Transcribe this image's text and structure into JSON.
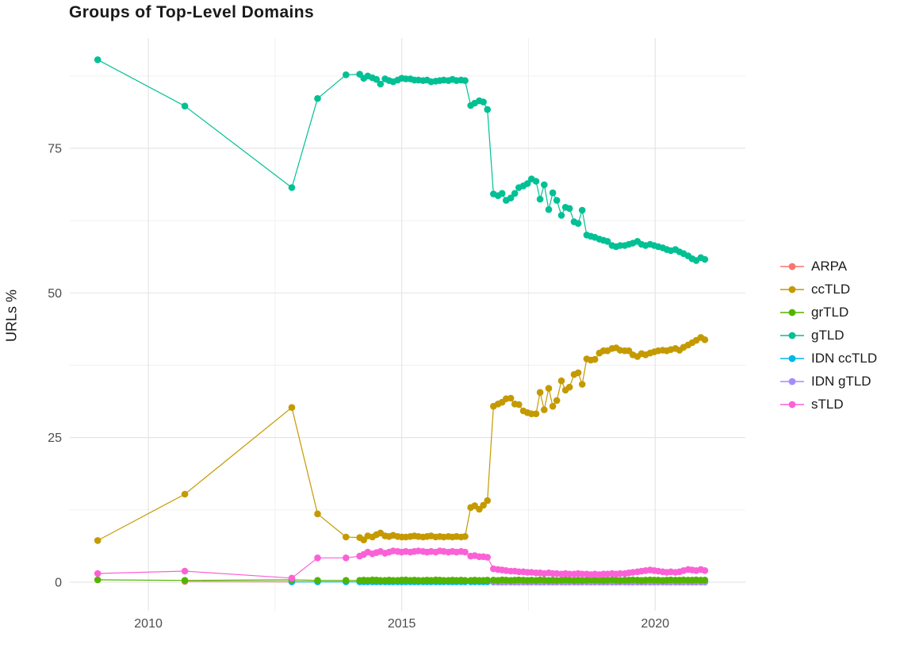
{
  "chart_data": {
    "type": "line",
    "title": "Groups of Top-Level Domains",
    "xlabel": "",
    "ylabel": "URLs %",
    "grid": true,
    "legend_position": "right",
    "x_ticks": [
      2010,
      2015,
      2020
    ],
    "x_minor": [
      2012.5,
      2017.5
    ],
    "y_ticks": [
      0,
      25,
      50,
      75
    ],
    "y_minor": [
      12.5,
      37.5,
      62.5,
      87.5
    ],
    "xlim": [
      2008.45,
      2021.78
    ],
    "ylim": [
      -4.95,
      94.05
    ],
    "legend_order": [
      "ARPA",
      "ccTLD",
      "grTLD",
      "gTLD",
      "IDN ccTLD",
      "IDN gTLD",
      "sTLD"
    ],
    "draw_order": [
      "ARPA",
      "IDN ccTLD",
      "IDN gTLD",
      "grTLD",
      "ccTLD",
      "gTLD",
      "sTLD"
    ],
    "series": [
      {
        "name": "ARPA",
        "color": "#F8766D",
        "x": [
          2010.72,
          2012.83
        ],
        "y": [
          0.12,
          0.06
        ]
      },
      {
        "name": "ccTLD",
        "color": "#C49A00",
        "x": [
          2009,
          2010.72,
          2012.83,
          2013.34,
          2013.9,
          2014.17,
          2014.25,
          2014.33,
          2014.42,
          2014.5,
          2014.58,
          2014.67,
          2014.75,
          2014.83,
          2014.92,
          2015,
          2015.08,
          2015.17,
          2015.25,
          2015.33,
          2015.42,
          2015.5,
          2015.58,
          2015.67,
          2015.75,
          2015.83,
          2015.92,
          2016,
          2016.08,
          2016.17,
          2016.25,
          2016.36,
          2016.44,
          2016.53,
          2016.61,
          2016.69,
          2016.81,
          2016.9,
          2016.98,
          2017.06,
          2017.15,
          2017.23,
          2017.31,
          2017.4,
          2017.48,
          2017.56,
          2017.65,
          2017.73,
          2017.81,
          2017.9,
          2017.98,
          2018.06,
          2018.15,
          2018.23,
          2018.31,
          2018.4,
          2018.48,
          2018.56,
          2018.65,
          2018.73,
          2018.81,
          2018.9,
          2018.98,
          2019.06,
          2019.15,
          2019.23,
          2019.31,
          2019.4,
          2019.48,
          2019.56,
          2019.65,
          2019.73,
          2019.81,
          2019.9,
          2019.98,
          2020.06,
          2020.15,
          2020.23,
          2020.31,
          2020.4,
          2020.48,
          2020.56,
          2020.65,
          2020.73,
          2020.81,
          2020.9,
          2020.98
        ],
        "y": [
          7.2,
          15.2,
          30.2,
          11.8,
          7.8,
          7.7,
          7.3,
          8,
          7.8,
          8.2,
          8.5,
          8,
          7.9,
          8.1,
          7.9,
          7.8,
          7.8,
          7.9,
          8,
          7.9,
          7.8,
          7.9,
          8,
          7.8,
          7.9,
          7.8,
          7.9,
          7.8,
          7.9,
          7.8,
          7.9,
          12.9,
          13.2,
          12.6,
          13.3,
          14.1,
          30.4,
          30.8,
          31.1,
          31.7,
          31.8,
          30.8,
          30.7,
          29.6,
          29.3,
          29.1,
          29.1,
          32.8,
          29.8,
          33.5,
          30.4,
          31.4,
          34.8,
          33.2,
          33.7,
          35.9,
          36.2,
          34.2,
          38.6,
          38.4,
          38.5,
          39.6,
          40,
          40,
          40.4,
          40.5,
          40.1,
          40,
          40,
          39.3,
          39,
          39.5,
          39.3,
          39.6,
          39.8,
          40,
          40.1,
          40,
          40.2,
          40.4,
          40.1,
          40.6,
          41,
          41.4,
          41.8,
          42.3,
          41.9
        ]
      },
      {
        "name": "grTLD",
        "color": "#53B400",
        "x": [
          2009,
          2010.72,
          2012.83,
          2013.34,
          2013.9,
          2014.17,
          2014.25,
          2014.33,
          2014.42,
          2014.5,
          2014.58,
          2014.67,
          2014.75,
          2014.83,
          2014.92,
          2015,
          2015.08,
          2015.17,
          2015.25,
          2015.33,
          2015.42,
          2015.5,
          2015.58,
          2015.67,
          2015.75,
          2015.83,
          2015.92,
          2016,
          2016.08,
          2016.17,
          2016.25,
          2016.36,
          2016.44,
          2016.53,
          2016.61,
          2016.69,
          2016.81,
          2016.9,
          2016.98,
          2017.06,
          2017.15,
          2017.23,
          2017.31,
          2017.4,
          2017.48,
          2017.56,
          2017.65,
          2017.73,
          2017.81,
          2017.9,
          2017.98,
          2018.06,
          2018.15,
          2018.23,
          2018.31,
          2018.4,
          2018.48,
          2018.56,
          2018.65,
          2018.73,
          2018.81,
          2018.9,
          2018.98,
          2019.06,
          2019.15,
          2019.23,
          2019.31,
          2019.4,
          2019.48,
          2019.56,
          2019.65,
          2019.73,
          2019.81,
          2019.9,
          2019.98,
          2020.06,
          2020.15,
          2020.23,
          2020.31,
          2020.4,
          2020.48,
          2020.56,
          2020.65,
          2020.73,
          2020.81,
          2020.9,
          2020.98
        ],
        "y": [
          0.4,
          0.3,
          0.4,
          0.3,
          0.3,
          0.3,
          0.35,
          0.3,
          0.4,
          0.35,
          0.3,
          0.3,
          0.35,
          0.3,
          0.3,
          0.35,
          0.4,
          0.3,
          0.35,
          0.3,
          0.3,
          0.35,
          0.3,
          0.4,
          0.35,
          0.3,
          0.3,
          0.35,
          0.3,
          0.35,
          0.3,
          0.3,
          0.35,
          0.3,
          0.3,
          0.35,
          0.35,
          0.3,
          0.4,
          0.35,
          0.3,
          0.35,
          0.4,
          0.35,
          0.3,
          0.35,
          0.3,
          0.4,
          0.35,
          0.3,
          0.35,
          0.3,
          0.35,
          0.4,
          0.35,
          0.3,
          0.35,
          0.3,
          0.35,
          0.4,
          0.35,
          0.35,
          0.3,
          0.35,
          0.4,
          0.35,
          0.3,
          0.35,
          0.35,
          0.4,
          0.35,
          0.3,
          0.35,
          0.4,
          0.35,
          0.35,
          0.3,
          0.35,
          0.4,
          0.35,
          0.35,
          0.4,
          0.35,
          0.35,
          0.4,
          0.35,
          0.35
        ]
      },
      {
        "name": "gTLD",
        "color": "#00C094",
        "x": [
          2009,
          2010.72,
          2012.83,
          2013.34,
          2013.9,
          2014.17,
          2014.25,
          2014.33,
          2014.42,
          2014.5,
          2014.58,
          2014.67,
          2014.75,
          2014.83,
          2014.92,
          2015,
          2015.08,
          2015.17,
          2015.25,
          2015.33,
          2015.42,
          2015.5,
          2015.58,
          2015.67,
          2015.75,
          2015.83,
          2015.92,
          2016,
          2016.08,
          2016.17,
          2016.25,
          2016.36,
          2016.44,
          2016.53,
          2016.61,
          2016.69,
          2016.81,
          2016.9,
          2016.98,
          2017.06,
          2017.15,
          2017.23,
          2017.31,
          2017.4,
          2017.48,
          2017.56,
          2017.65,
          2017.73,
          2017.81,
          2017.9,
          2017.98,
          2018.06,
          2018.15,
          2018.23,
          2018.31,
          2018.4,
          2018.48,
          2018.56,
          2018.65,
          2018.73,
          2018.81,
          2018.9,
          2018.98,
          2019.06,
          2019.15,
          2019.23,
          2019.31,
          2019.4,
          2019.48,
          2019.56,
          2019.65,
          2019.73,
          2019.81,
          2019.9,
          2019.98,
          2020.06,
          2020.15,
          2020.23,
          2020.31,
          2020.4,
          2020.48,
          2020.56,
          2020.65,
          2020.73,
          2020.81,
          2020.9,
          2020.98
        ],
        "y": [
          90.3,
          82.3,
          68.2,
          83.6,
          87.7,
          87.8,
          87.1,
          87.5,
          87.2,
          86.9,
          86.1,
          87,
          86.7,
          86.5,
          86.8,
          87.1,
          87,
          87,
          86.8,
          86.8,
          86.7,
          86.8,
          86.5,
          86.6,
          86.7,
          86.8,
          86.7,
          86.9,
          86.7,
          86.8,
          86.7,
          82.4,
          82.8,
          83.2,
          83,
          81.7,
          67.1,
          66.8,
          67.2,
          66,
          66.4,
          67.2,
          68.2,
          68.5,
          68.9,
          69.7,
          69.3,
          66.2,
          68.7,
          64.4,
          67.3,
          66,
          63.4,
          64.8,
          64.6,
          62.3,
          62,
          64.3,
          60,
          59.8,
          59.6,
          59.3,
          59.1,
          58.9,
          58.2,
          58,
          58.2,
          58.2,
          58.4,
          58.6,
          58.9,
          58.4,
          58.2,
          58.4,
          58.2,
          58,
          57.8,
          57.5,
          57.3,
          57.5,
          57.1,
          56.8,
          56.4,
          55.9,
          55.6,
          56.1,
          55.8
        ]
      },
      {
        "name": "IDN ccTLD",
        "color": "#00B6EB",
        "x": [
          2012.83,
          2013.34,
          2013.9,
          2014.17,
          2014.25,
          2014.33,
          2014.42,
          2014.5,
          2014.58,
          2014.67,
          2014.75,
          2014.83,
          2014.92,
          2015,
          2015.08,
          2015.17,
          2015.25,
          2015.33,
          2015.42,
          2015.5,
          2015.58,
          2015.67,
          2015.75,
          2015.83,
          2015.92,
          2016,
          2016.08,
          2016.17,
          2016.25,
          2016.36,
          2016.44,
          2016.53,
          2016.61,
          2016.69,
          2016.81,
          2016.9,
          2016.98,
          2017.06,
          2017.15,
          2017.23,
          2017.31,
          2017.4,
          2017.48,
          2017.56,
          2017.65,
          2017.73,
          2017.81,
          2017.9,
          2017.98,
          2018.06,
          2018.15,
          2018.23,
          2018.31,
          2018.4,
          2018.48,
          2018.56,
          2018.65,
          2018.73,
          2018.81,
          2018.9,
          2018.98,
          2019.06,
          2019.15,
          2019.23,
          2019.31,
          2019.4,
          2019.48,
          2019.56,
          2019.65,
          2019.73,
          2019.81,
          2019.9,
          2019.98,
          2020.06,
          2020.15,
          2020.23,
          2020.31,
          2020.4,
          2020.48,
          2020.56,
          2020.65,
          2020.73,
          2020.81,
          2020.9,
          2020.98
        ],
        "y_const": 0.05
      },
      {
        "name": "IDN gTLD",
        "color": "#A58AFF",
        "x": [
          2016.81,
          2016.9,
          2016.98,
          2017.06,
          2017.15,
          2017.23,
          2017.31,
          2017.4,
          2017.48,
          2017.56,
          2017.65,
          2017.73,
          2017.81,
          2017.9,
          2017.98,
          2018.06,
          2018.15,
          2018.23,
          2018.31,
          2018.4,
          2018.48,
          2018.56,
          2018.65,
          2018.73,
          2018.81,
          2018.9,
          2018.98,
          2019.06,
          2019.15,
          2019.23,
          2019.31,
          2019.4,
          2019.48,
          2019.56,
          2019.65,
          2019.73,
          2019.81,
          2019.9,
          2019.98,
          2020.06,
          2020.15,
          2020.23,
          2020.31,
          2020.4,
          2020.48,
          2020.56,
          2020.65,
          2020.73,
          2020.81,
          2020.9,
          2020.98
        ],
        "y_const": 0.02
      },
      {
        "name": "sTLD",
        "color": "#FB61D7",
        "x": [
          2009,
          2010.72,
          2012.83,
          2013.34,
          2013.9,
          2014.17,
          2014.25,
          2014.33,
          2014.42,
          2014.5,
          2014.58,
          2014.67,
          2014.75,
          2014.83,
          2014.92,
          2015,
          2015.08,
          2015.17,
          2015.25,
          2015.33,
          2015.42,
          2015.5,
          2015.58,
          2015.67,
          2015.75,
          2015.83,
          2015.92,
          2016,
          2016.08,
          2016.17,
          2016.25,
          2016.36,
          2016.44,
          2016.53,
          2016.61,
          2016.69,
          2016.81,
          2016.9,
          2016.98,
          2017.06,
          2017.15,
          2017.23,
          2017.31,
          2017.4,
          2017.48,
          2017.56,
          2017.65,
          2017.73,
          2017.81,
          2017.9,
          2017.98,
          2018.06,
          2018.15,
          2018.23,
          2018.31,
          2018.4,
          2018.48,
          2018.56,
          2018.65,
          2018.73,
          2018.81,
          2018.9,
          2018.98,
          2019.06,
          2019.15,
          2019.23,
          2019.31,
          2019.4,
          2019.48,
          2019.56,
          2019.65,
          2019.73,
          2019.81,
          2019.9,
          2019.98,
          2020.06,
          2020.15,
          2020.23,
          2020.31,
          2020.4,
          2020.48,
          2020.56,
          2020.65,
          2020.73,
          2020.81,
          2020.9,
          2020.98
        ],
        "y": [
          1.5,
          1.9,
          0.7,
          4.2,
          4.2,
          4.5,
          4.8,
          5.2,
          4.9,
          5.1,
          5.3,
          5,
          5.2,
          5.4,
          5.3,
          5.2,
          5.3,
          5.2,
          5.3,
          5.4,
          5.3,
          5.2,
          5.3,
          5.2,
          5.4,
          5.3,
          5.2,
          5.3,
          5.2,
          5.3,
          5.2,
          4.5,
          4.6,
          4.4,
          4.4,
          4.3,
          2.3,
          2.2,
          2.1,
          2,
          1.9,
          1.9,
          1.8,
          1.8,
          1.7,
          1.7,
          1.6,
          1.6,
          1.5,
          1.6,
          1.5,
          1.5,
          1.4,
          1.5,
          1.4,
          1.4,
          1.5,
          1.4,
          1.4,
          1.3,
          1.4,
          1.3,
          1.4,
          1.4,
          1.5,
          1.4,
          1.5,
          1.5,
          1.6,
          1.7,
          1.8,
          1.9,
          2,
          2.1,
          2,
          1.9,
          1.8,
          1.7,
          1.8,
          1.7,
          1.8,
          2,
          2.2,
          2.1,
          2,
          2.2,
          2
        ]
      }
    ],
    "style": {
      "grid_major_color": "#e3e3e3",
      "grid_minor_color": "#f0f0f0",
      "tick_label_color": "#4d4d4d",
      "background": "#ffffff"
    }
  }
}
